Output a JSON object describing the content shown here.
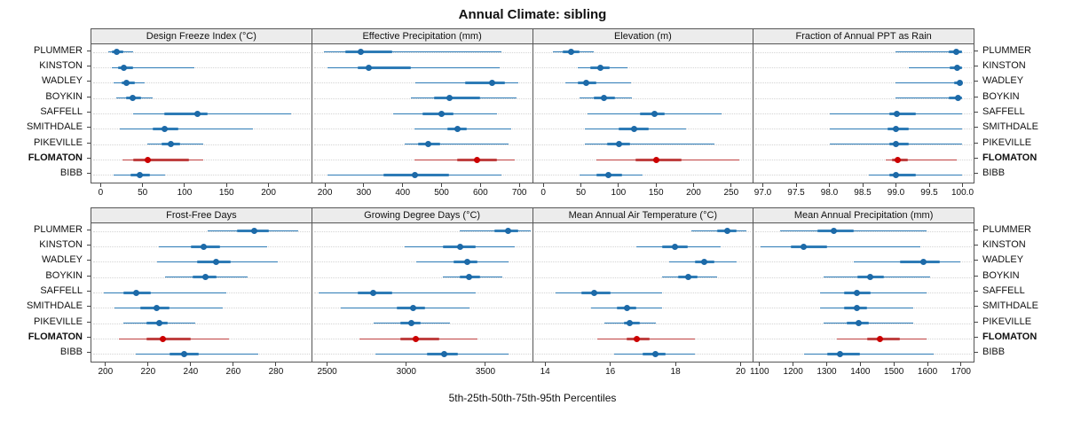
{
  "title": "Annual Climate: sibling",
  "caption": "5th-25th-50th-75th-95th Percentiles",
  "sites": [
    "PLUMMER",
    "KINSTON",
    "WADLEY",
    "BOYKIN",
    "SAFFELL",
    "SMITHDALE",
    "PIKEVILLE",
    "FLOMATON",
    "BIBB"
  ],
  "highlight_site": "FLOMATON",
  "colors": {
    "series_line": "#2d7bb6",
    "series_dot": "#1d6aa8",
    "highlight_line": "#bf4040",
    "highlight_dot": "#cc0000",
    "strip_bg": "#ececec",
    "panel_border": "#555555",
    "grid": "#d4d4d4"
  },
  "chart_data": {
    "type": "dotplot-intervals",
    "percentiles": [
      5,
      25,
      50,
      75,
      95
    ],
    "rows": [
      "PLUMMER",
      "KINSTON",
      "WADLEY",
      "BOYKIN",
      "SAFFELL",
      "SMITHDALE",
      "PIKEVILLE",
      "FLOMATON",
      "BIBB"
    ],
    "legend_note": "values per site are [p5, p25, p50, p75, p95]",
    "panels": [
      {
        "title": "Design Freeze Index (°C)",
        "range": [
          -12,
          252
        ],
        "ticks": [
          0,
          50,
          100,
          150,
          200
        ],
        "tick_labels": [
          "0",
          "50",
          "100",
          "150",
          "200"
        ],
        "stats": {
          "PLUMMER": [
            8,
            13,
            18,
            26,
            38
          ],
          "KINSTON": [
            12,
            20,
            27,
            38,
            112
          ],
          "WADLEY": [
            15,
            24,
            30,
            40,
            52
          ],
          "BOYKIN": [
            18,
            30,
            38,
            48,
            62
          ],
          "SAFFELL": [
            38,
            75,
            115,
            128,
            228
          ],
          "SMITHDALE": [
            22,
            62,
            76,
            92,
            182
          ],
          "PIKEVILLE": [
            55,
            72,
            83,
            95,
            122
          ],
          "FLOMATON": [
            25,
            38,
            56,
            105,
            122
          ],
          "BIBB": [
            15,
            35,
            46,
            58,
            76
          ]
        }
      },
      {
        "title": "Effective Precipitation (mm)",
        "range": [
          165,
          735
        ],
        "ticks": [
          200,
          300,
          400,
          500,
          600,
          700
        ],
        "tick_labels": [
          "200",
          "300",
          "400",
          "500",
          "600",
          "700"
        ],
        "stats": {
          "PLUMMER": [
            195,
            250,
            292,
            372,
            655
          ],
          "KINSTON": [
            205,
            282,
            312,
            420,
            650
          ],
          "WADLEY": [
            432,
            562,
            632,
            664,
            700
          ],
          "BOYKIN": [
            420,
            480,
            522,
            600,
            695
          ],
          "SAFFELL": [
            375,
            452,
            500,
            532,
            645
          ],
          "SMITHDALE": [
            430,
            516,
            541,
            566,
            680
          ],
          "PIKEVILLE": [
            405,
            440,
            466,
            496,
            675
          ],
          "FLOMATON": [
            430,
            540,
            592,
            645,
            690
          ],
          "BIBB": [
            205,
            350,
            432,
            520,
            655
          ]
        }
      },
      {
        "title": "Elevation (m)",
        "range": [
          -15,
          280
        ],
        "ticks": [
          0,
          50,
          100,
          150,
          200,
          250
        ],
        "tick_labels": [
          "0",
          "50",
          "100",
          "150",
          "200",
          "250"
        ],
        "stats": {
          "PLUMMER": [
            12,
            25,
            36,
            48,
            66
          ],
          "KINSTON": [
            45,
            62,
            75,
            88,
            112
          ],
          "WADLEY": [
            28,
            45,
            56,
            70,
            116
          ],
          "BOYKIN": [
            48,
            66,
            80,
            95,
            118
          ],
          "SAFFELL": [
            58,
            128,
            148,
            162,
            238
          ],
          "SMITHDALE": [
            55,
            100,
            121,
            140,
            190
          ],
          "PIKEVILLE": [
            55,
            85,
            101,
            115,
            228
          ],
          "FLOMATON": [
            70,
            122,
            151,
            185,
            262
          ],
          "BIBB": [
            48,
            70,
            86,
            105,
            132
          ]
        }
      },
      {
        "title": "Fraction of Annual PPT as Rain",
        "range": [
          96.85,
          100.18
        ],
        "ticks": [
          97.0,
          97.5,
          98.0,
          98.5,
          99.0,
          99.5,
          100.0
        ],
        "tick_labels": [
          "97.0",
          "97.5",
          "98.0",
          "98.5",
          "99.0",
          "99.5",
          "100.0"
        ],
        "stats": {
          "PLUMMER": [
            99.0,
            99.8,
            99.92,
            100.0,
            100.0
          ],
          "KINSTON": [
            99.2,
            99.82,
            99.93,
            100.0,
            100.0
          ],
          "WADLEY": [
            99.0,
            99.88,
            99.97,
            100.0,
            100.0
          ],
          "BOYKIN": [
            99.0,
            99.8,
            99.95,
            100.0,
            100.0
          ],
          "SAFFELL": [
            98.0,
            98.9,
            99.02,
            99.3,
            100.0
          ],
          "SMITHDALE": [
            98.0,
            98.88,
            99.0,
            99.2,
            100.0
          ],
          "PIKEVILLE": [
            98.0,
            98.9,
            99.0,
            99.2,
            100.0
          ],
          "FLOMATON": [
            98.85,
            98.95,
            99.03,
            99.18,
            99.92
          ],
          "BIBB": [
            98.6,
            98.9,
            99.0,
            99.3,
            100.0
          ]
        }
      },
      {
        "title": "Frost-Free Days",
        "range": [
          193,
          297
        ],
        "ticks": [
          200,
          220,
          240,
          260,
          280
        ],
        "tick_labels": [
          "200",
          "220",
          "240",
          "260",
          "280"
        ],
        "stats": {
          "PLUMMER": [
            248,
            262,
            270,
            277,
            291
          ],
          "KINSTON": [
            225,
            240,
            246,
            254,
            276
          ],
          "WADLEY": [
            224,
            243,
            252,
            259,
            281
          ],
          "BOYKIN": [
            228,
            241,
            247,
            252,
            267
          ],
          "SAFFELL": [
            199,
            208,
            214,
            221,
            257
          ],
          "SMITHDALE": [
            204,
            216,
            224,
            230,
            255
          ],
          "PIKEVILLE": [
            208,
            219,
            225,
            229,
            242
          ],
          "FLOMATON": [
            206,
            219,
            227,
            240,
            258
          ],
          "BIBB": [
            214,
            230,
            237,
            244,
            272
          ]
        }
      },
      {
        "title": "Growing Degree Days (°C)",
        "range": [
          2400,
          3800
        ],
        "ticks": [
          2500,
          3000,
          3500
        ],
        "tick_labels": [
          "2500",
          "3000",
          "3500"
        ],
        "stats": {
          "PLUMMER": [
            3340,
            3560,
            3650,
            3710,
            3790
          ],
          "KINSTON": [
            2990,
            3230,
            3340,
            3440,
            3690
          ],
          "WADLEY": [
            3060,
            3300,
            3390,
            3450,
            3650
          ],
          "BOYKIN": [
            3230,
            3340,
            3400,
            3470,
            3610
          ],
          "SAFFELL": [
            2440,
            2690,
            2790,
            2910,
            3440
          ],
          "SMITHDALE": [
            2580,
            2940,
            3040,
            3120,
            3400
          ],
          "PIKEVILLE": [
            2790,
            2960,
            3030,
            3090,
            3280
          ],
          "FLOMATON": [
            2700,
            2960,
            3060,
            3210,
            3450
          ],
          "BIBB": [
            2800,
            3130,
            3240,
            3330,
            3650
          ]
        }
      },
      {
        "title": "Mean Annual Air Temperature (°C)",
        "range": [
          13.6,
          20.4
        ],
        "ticks": [
          14,
          16,
          18,
          20
        ],
        "tick_labels": [
          "14",
          "16",
          "18",
          "20"
        ],
        "stats": {
          "PLUMMER": [
            18.5,
            19.3,
            19.6,
            19.9,
            20.2
          ],
          "KINSTON": [
            16.8,
            17.6,
            18.0,
            18.4,
            19.4
          ],
          "WADLEY": [
            17.8,
            18.6,
            18.9,
            19.2,
            19.9
          ],
          "BOYKIN": [
            17.6,
            18.1,
            18.4,
            18.7,
            19.3
          ],
          "SAFFELL": [
            14.3,
            15.1,
            15.5,
            16.0,
            17.6
          ],
          "SMITHDALE": [
            15.4,
            16.2,
            16.5,
            16.8,
            17.6
          ],
          "PIKEVILLE": [
            15.8,
            16.4,
            16.6,
            16.9,
            17.4
          ],
          "FLOMATON": [
            15.6,
            16.5,
            16.8,
            17.2,
            18.6
          ],
          "BIBB": [
            16.1,
            17.0,
            17.4,
            17.7,
            18.6
          ]
        }
      },
      {
        "title": "Mean Annual Precipitation (mm)",
        "range": [
          1080,
          1740
        ],
        "ticks": [
          1100,
          1200,
          1300,
          1400,
          1500,
          1600,
          1700
        ],
        "tick_labels": [
          "1100",
          "1200",
          "1300",
          "1400",
          "1500",
          "1600",
          "1700"
        ],
        "stats": {
          "PLUMMER": [
            1160,
            1270,
            1320,
            1380,
            1600
          ],
          "KINSTON": [
            1100,
            1190,
            1230,
            1300,
            1580
          ],
          "WADLEY": [
            1380,
            1520,
            1590,
            1640,
            1700
          ],
          "BOYKIN": [
            1290,
            1390,
            1430,
            1470,
            1610
          ],
          "SAFFELL": [
            1280,
            1350,
            1390,
            1430,
            1600
          ],
          "SMITHDALE": [
            1280,
            1350,
            1390,
            1420,
            1560
          ],
          "PIKEVILLE": [
            1290,
            1360,
            1395,
            1425,
            1560
          ],
          "FLOMATON": [
            1330,
            1420,
            1460,
            1520,
            1600
          ],
          "BIBB": [
            1230,
            1300,
            1340,
            1400,
            1620
          ]
        }
      }
    ]
  }
}
